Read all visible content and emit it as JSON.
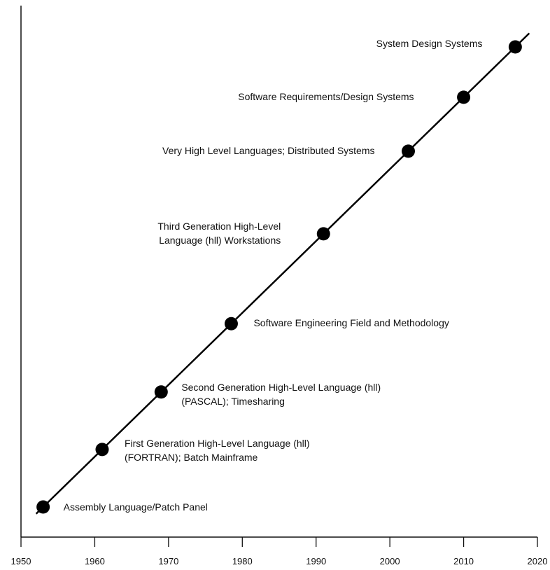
{
  "chart_data": {
    "type": "line",
    "title": "",
    "xlabel": "",
    "ylabel": "",
    "xlim": [
      1950,
      2020
    ],
    "x_ticks": [
      "1950",
      "1960",
      "1970",
      "1980",
      "1990",
      "2000",
      "2010",
      "2020"
    ],
    "grid": false,
    "legend": "none",
    "points": [
      {
        "x": 1953,
        "lines": [
          "Assembly Language/Patch Panel"
        ]
      },
      {
        "x": 1961,
        "lines": [
          "First Generation High-Level Language (hll)",
          "(FORTRAN); Batch Mainframe"
        ]
      },
      {
        "x": 1969,
        "lines": [
          "Second Generation High-Level Language (hll)",
          "(PASCAL); Timesharing"
        ]
      },
      {
        "x": 1978.5,
        "lines": [
          "Software Engineering Field and Methodology"
        ]
      },
      {
        "x": 1991,
        "lines": [
          "Third Generation High-Level",
          "Language (hll) Workstations"
        ]
      },
      {
        "x": 2002.5,
        "lines": [
          "Very  High Level Languages;  Distributed Systems"
        ]
      },
      {
        "x": 2010,
        "lines": [
          "Software Requirements/Design Systems"
        ]
      },
      {
        "x": 2017,
        "lines": [
          "System Design Systems"
        ]
      }
    ],
    "colors": {
      "line": "#000000",
      "points": "#000000",
      "axes": "#111111",
      "text": "#111111"
    }
  }
}
